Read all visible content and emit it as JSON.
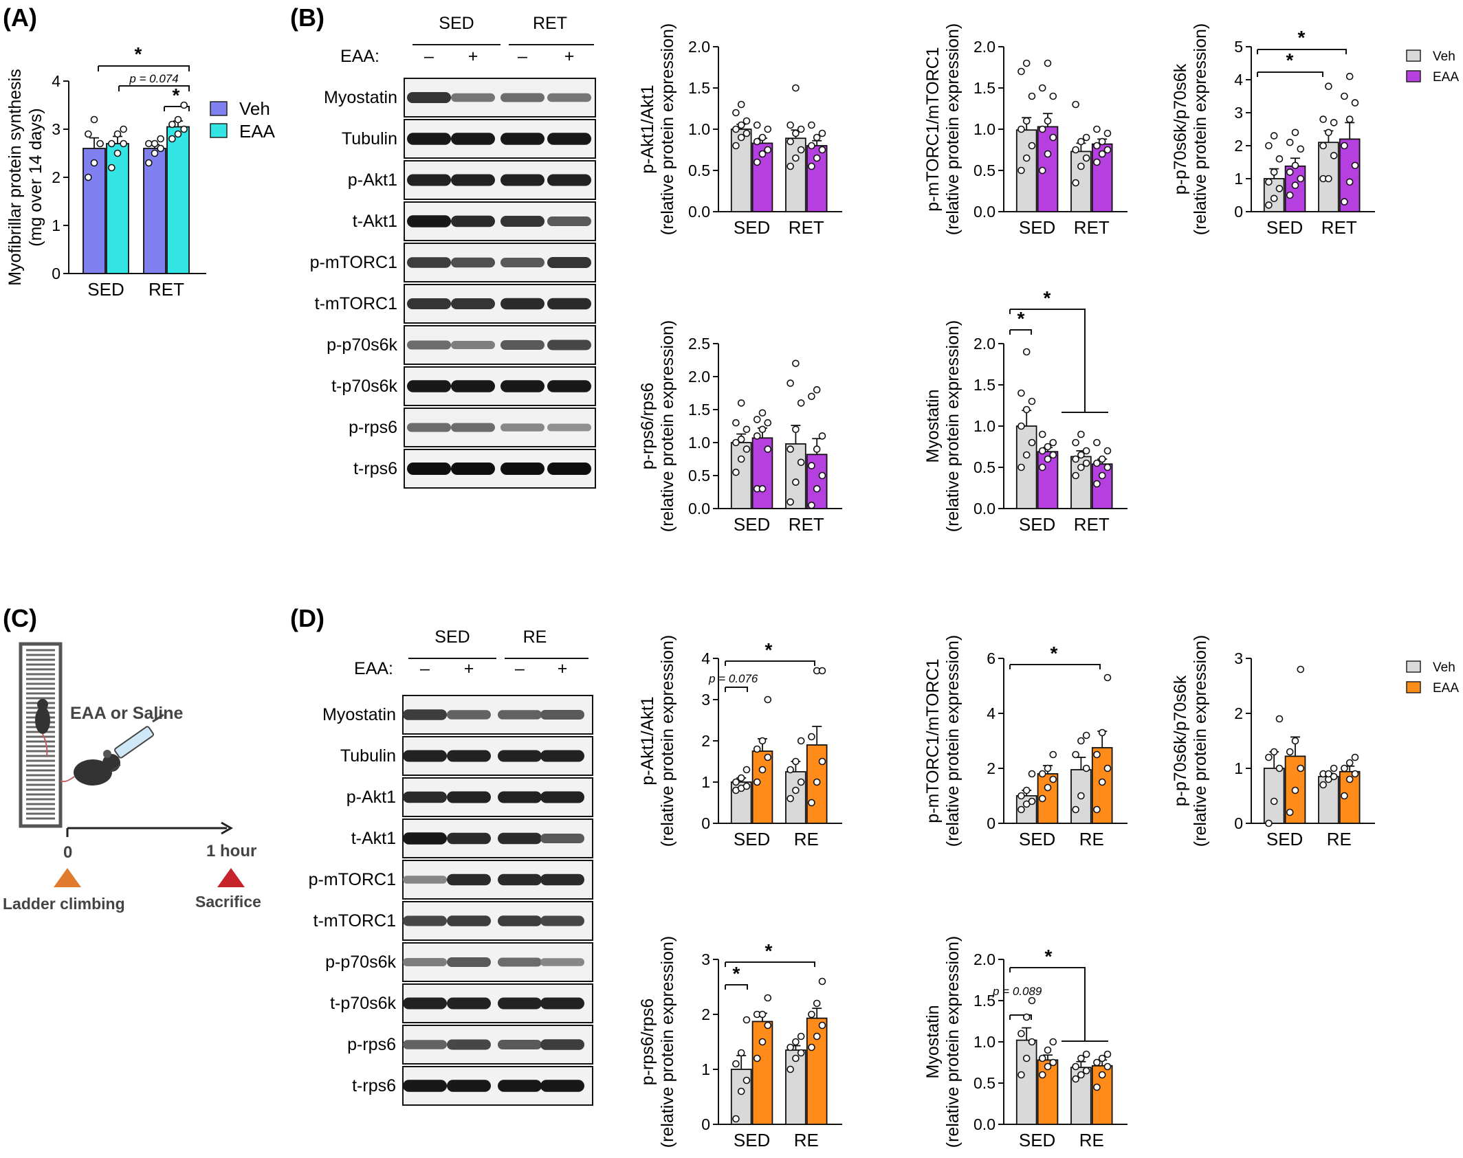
{
  "panels": {
    "A": "(A)",
    "B": "(B)",
    "C": "(C)",
    "D": "(D)"
  },
  "colors": {
    "veh_A": "#8080F0",
    "eaa_A": "#33E5E5",
    "veh": "#D9D9D9",
    "eaa_B": "#B63FE0",
    "eaa_D": "#FF8C1A"
  },
  "panel_A": {
    "ylabel_line1": "Myofibrillar protein synthesis",
    "ylabel_line2": "(mg over 14 days)",
    "legend": [
      "Veh",
      "EAA"
    ],
    "pval": "p = 0.074",
    "star": "*"
  },
  "panel_B": {
    "groups": [
      "SED",
      "RET"
    ],
    "eaa_label": "EAA:",
    "signs": [
      "–",
      "+",
      "–",
      "+"
    ],
    "blots": [
      "Myostatin",
      "Tubulin",
      "p-Akt1",
      "t-Akt1",
      "p-mTORC1",
      "t-mTORC1",
      "p-p70s6k",
      "t-p70s6k",
      "p-rps6",
      "t-rps6"
    ],
    "legend": [
      "Veh",
      "EAA"
    ]
  },
  "panel_C": {
    "treatment": "EAA or Saline",
    "t0": "0",
    "t1": "1 hour",
    "start": "Ladder climbing",
    "end": "Sacrifice"
  },
  "panel_D": {
    "groups": [
      "SED",
      "RE"
    ],
    "eaa_label": "EAA:",
    "signs": [
      "–",
      "+",
      "–",
      "+"
    ],
    "blots": [
      "Myostatin",
      "Tubulin",
      "p-Akt1",
      "t-Akt1",
      "p-mTORC1",
      "t-mTORC1",
      "p-p70s6k",
      "t-p70s6k",
      "p-rps6",
      "t-rps6"
    ],
    "legend": [
      "Veh",
      "EAA"
    ]
  },
  "chart_data": [
    {
      "id": "A-mps",
      "type": "bar",
      "categories": [
        "SED",
        "RET"
      ],
      "ylabel": "Myofibrillar protein synthesis (mg over 14 days)",
      "ylim": [
        0,
        4
      ],
      "yticks": [
        0,
        1,
        2,
        3,
        4
      ],
      "series": [
        {
          "name": "Veh",
          "values": [
            2.6,
            2.6
          ],
          "sem": [
            0.22,
            0.08
          ],
          "points": [
            [
              2.0,
              2.3,
              2.7,
              2.9,
              3.2
            ],
            [
              2.3,
              2.5,
              2.6,
              2.7,
              2.7,
              2.8
            ]
          ]
        },
        {
          "name": "EAA",
          "values": [
            2.7,
            3.05
          ],
          "sem": [
            0.15,
            0.12
          ],
          "points": [
            [
              2.2,
              2.5,
              2.7,
              2.7,
              2.9,
              3.0
            ],
            [
              2.8,
              2.9,
              3.0,
              3.1,
              3.2,
              3.5
            ]
          ]
        }
      ],
      "annotations": [
        "*",
        "p = 0.074",
        "*"
      ]
    },
    {
      "id": "B-akt",
      "type": "bar",
      "categories": [
        "SED",
        "RET"
      ],
      "ylabel": "p-Akt1/Akt1 (relative protein expression)",
      "ylim": [
        0,
        2.0
      ],
      "yticks": [
        "0.0",
        "0.5",
        "1.0",
        "1.5",
        "2.0"
      ],
      "series": [
        {
          "name": "Veh",
          "values": [
            1.0,
            0.89
          ],
          "sem": [
            0.06,
            0.1
          ],
          "points": [
            [
              0.8,
              0.9,
              0.95,
              1.0,
              1.05,
              1.1,
              1.2,
              1.3
            ],
            [
              0.55,
              0.65,
              0.75,
              0.85,
              0.95,
              1.0,
              1.05,
              1.5
            ]
          ]
        },
        {
          "name": "EAA",
          "values": [
            0.83,
            0.8
          ],
          "sem": [
            0.06,
            0.06
          ],
          "points": [
            [
              0.6,
              0.7,
              0.75,
              0.85,
              0.9,
              1.0,
              1.05
            ],
            [
              0.55,
              0.65,
              0.75,
              0.8,
              0.9,
              0.95,
              1.05
            ]
          ]
        }
      ]
    },
    {
      "id": "B-mtor",
      "type": "bar",
      "categories": [
        "SED",
        "RET"
      ],
      "ylabel": "p-mTORC1/mTORC1 (relative protein expression)",
      "ylim": [
        0,
        2.0
      ],
      "yticks": [
        "0.0",
        "0.5",
        "1.0",
        "1.5",
        "2.0"
      ],
      "series": [
        {
          "name": "Veh",
          "values": [
            0.99,
            0.73
          ],
          "sem": [
            0.15,
            0.1
          ],
          "points": [
            [
              0.5,
              0.65,
              0.8,
              1.0,
              1.1,
              1.4,
              1.7,
              1.8
            ],
            [
              0.35,
              0.55,
              0.65,
              0.75,
              0.85,
              0.9,
              1.3
            ]
          ]
        },
        {
          "name": "EAA",
          "values": [
            1.03,
            0.82
          ],
          "sem": [
            0.16,
            0.06
          ],
          "points": [
            [
              0.5,
              0.7,
              0.9,
              1.0,
              1.1,
              1.4,
              1.5,
              1.8
            ],
            [
              0.6,
              0.7,
              0.75,
              0.8,
              0.85,
              0.95,
              1.0
            ]
          ]
        }
      ]
    },
    {
      "id": "B-p70",
      "type": "bar",
      "categories": [
        "SED",
        "RET"
      ],
      "ylabel": "p-p70s6k/p70s6k (relative protein expression)",
      "ylim": [
        0,
        5
      ],
      "yticks": [
        0,
        1,
        2,
        3,
        4,
        5
      ],
      "series": [
        {
          "name": "Veh",
          "values": [
            1.0,
            2.1
          ],
          "sem": [
            0.3,
            0.35
          ],
          "points": [
            [
              0.2,
              0.4,
              0.7,
              0.9,
              1.2,
              1.6,
              2.0,
              2.3
            ],
            [
              1.0,
              1.0,
              1.7,
              2.0,
              2.4,
              2.7,
              2.8,
              3.8
            ]
          ]
        },
        {
          "name": "EAA",
          "values": [
            1.38,
            2.2
          ],
          "sem": [
            0.24,
            0.5
          ],
          "points": [
            [
              0.5,
              0.8,
              1.0,
              1.2,
              1.4,
              1.9,
              2.1,
              2.4
            ],
            [
              0.3,
              0.9,
              1.4,
              2.0,
              2.8,
              3.3,
              3.5,
              4.1
            ]
          ]
        }
      ],
      "annotations": [
        "*",
        "*"
      ]
    },
    {
      "id": "B-rps6",
      "type": "bar",
      "categories": [
        "SED",
        "RET"
      ],
      "ylabel": "p-rps6/rps6 (relative protein expression)",
      "ylim": [
        0,
        2.5
      ],
      "yticks": [
        "0.0",
        "0.5",
        "1.0",
        "1.5",
        "2.0",
        "2.5"
      ],
      "series": [
        {
          "name": "Veh",
          "values": [
            1.0,
            0.98
          ],
          "sem": [
            0.13,
            0.28
          ],
          "points": [
            [
              0.55,
              0.75,
              0.9,
              1.0,
              1.05,
              1.2,
              1.3,
              1.6
            ],
            [
              0.1,
              0.4,
              0.7,
              0.9,
              1.2,
              1.6,
              1.9,
              2.2
            ]
          ]
        },
        {
          "name": "EAA",
          "values": [
            1.07,
            0.82
          ],
          "sem": [
            0.15,
            0.24
          ],
          "points": [
            [
              0.3,
              0.3,
              0.9,
              1.1,
              1.2,
              1.3,
              1.35,
              1.45
            ],
            [
              0.05,
              0.3,
              0.5,
              0.65,
              0.9,
              1.1,
              1.7,
              1.8
            ]
          ]
        }
      ]
    },
    {
      "id": "B-myostatin",
      "type": "bar",
      "categories": [
        "SED",
        "RET"
      ],
      "ylabel": "Myostatin (relative protein expression)",
      "ylim": [
        0,
        2.0
      ],
      "yticks": [
        "0.0",
        "0.5",
        "1.0",
        "1.5",
        "2.0"
      ],
      "series": [
        {
          "name": "Veh",
          "values": [
            1.0,
            0.63
          ],
          "sem": [
            0.19,
            0.07
          ],
          "points": [
            [
              0.5,
              0.65,
              0.8,
              1.0,
              1.2,
              1.3,
              1.4,
              1.9
            ],
            [
              0.4,
              0.5,
              0.55,
              0.6,
              0.65,
              0.7,
              0.8,
              0.9
            ]
          ]
        },
        {
          "name": "EAA",
          "values": [
            0.69,
            0.54
          ],
          "sem": [
            0.05,
            0.06
          ],
          "points": [
            [
              0.5,
              0.6,
              0.65,
              0.7,
              0.75,
              0.8,
              0.9
            ],
            [
              0.3,
              0.4,
              0.5,
              0.55,
              0.6,
              0.7,
              0.8
            ]
          ]
        }
      ],
      "annotations": [
        "*",
        "*"
      ]
    },
    {
      "id": "D-akt",
      "type": "bar",
      "categories": [
        "SED",
        "RE"
      ],
      "ylabel": "p-Akt1/Akt1 (relative protein expression)",
      "ylim": [
        0,
        4
      ],
      "yticks": [
        0,
        1,
        2,
        3,
        4
      ],
      "series": [
        {
          "name": "Veh",
          "values": [
            1.0,
            1.25
          ],
          "sem": [
            0.1,
            0.25
          ],
          "points": [
            [
              0.8,
              0.85,
              0.9,
              1.0,
              1.1,
              1.3
            ],
            [
              0.6,
              0.8,
              1.0,
              1.3,
              1.5,
              2.0
            ]
          ]
        },
        {
          "name": "EAA",
          "values": [
            1.75,
            1.9
          ],
          "sem": [
            0.3,
            0.45
          ],
          "points": [
            [
              1.0,
              1.3,
              1.6,
              1.8,
              2.0,
              3.0
            ],
            [
              0.5,
              1.0,
              1.5,
              2.1,
              3.7,
              3.7
            ]
          ]
        }
      ],
      "annotations": [
        "p = 0.076",
        "*"
      ]
    },
    {
      "id": "D-mtor",
      "type": "bar",
      "categories": [
        "SED",
        "RE"
      ],
      "ylabel": "p-mTORC1/mTORC1 (relative protein expression)",
      "ylim": [
        0,
        6
      ],
      "yticks": [
        0,
        2,
        4,
        6
      ],
      "series": [
        {
          "name": "Veh",
          "values": [
            1.0,
            1.95
          ],
          "sem": [
            0.2,
            0.45
          ],
          "points": [
            [
              0.5,
              0.7,
              0.8,
              1.0,
              1.2,
              1.8
            ],
            [
              0.5,
              1.0,
              2.0,
              2.5,
              3.0,
              3.2
            ]
          ]
        },
        {
          "name": "EAA",
          "values": [
            1.8,
            2.75
          ],
          "sem": [
            0.3,
            0.6
          ],
          "points": [
            [
              0.9,
              1.3,
              1.6,
              1.8,
              2.0,
              2.5
            ],
            [
              0.5,
              1.5,
              2.0,
              2.5,
              3.3,
              5.3
            ]
          ]
        }
      ],
      "annotations": [
        "*"
      ]
    },
    {
      "id": "D-p70",
      "type": "bar",
      "categories": [
        "SED",
        "RE"
      ],
      "ylabel": "p-p70s6k/p70s6k (relative protein expression)",
      "ylim": [
        0,
        3
      ],
      "yticks": [
        0,
        1,
        2,
        3
      ],
      "series": [
        {
          "name": "Veh",
          "values": [
            1.0,
            0.85
          ],
          "sem": [
            0.3,
            0.06
          ],
          "points": [
            [
              0.0,
              0.4,
              1.0,
              1.2,
              1.3,
              1.9
            ],
            [
              0.7,
              0.8,
              0.85,
              0.9,
              0.9,
              1.0
            ]
          ]
        },
        {
          "name": "EAA",
          "values": [
            1.22,
            0.94
          ],
          "sem": [
            0.35,
            0.1
          ],
          "points": [
            [
              0.2,
              0.6,
              1.0,
              1.3,
              1.5,
              2.8
            ],
            [
              0.5,
              0.8,
              0.9,
              1.0,
              1.1,
              1.2
            ]
          ]
        }
      ]
    },
    {
      "id": "D-rps6",
      "type": "bar",
      "categories": [
        "SED",
        "RE"
      ],
      "ylabel": "p-rps6/rps6 (relative protein expression)",
      "ylim": [
        0,
        3
      ],
      "yticks": [
        0,
        1,
        2,
        3
      ],
      "series": [
        {
          "name": "Veh",
          "values": [
            1.0,
            1.35
          ],
          "sem": [
            0.25,
            0.08
          ],
          "points": [
            [
              0.1,
              0.6,
              0.8,
              1.1,
              1.3,
              1.9
            ],
            [
              1.0,
              1.2,
              1.3,
              1.4,
              1.5,
              1.6
            ]
          ]
        },
        {
          "name": "EAA",
          "values": [
            1.87,
            1.93
          ],
          "sem": [
            0.15,
            0.18
          ],
          "points": [
            [
              1.2,
              1.5,
              1.8,
              2.0,
              2.0,
              2.3
            ],
            [
              1.4,
              1.6,
              1.8,
              2.0,
              2.2,
              2.6
            ]
          ]
        }
      ],
      "annotations": [
        "*",
        "*"
      ]
    },
    {
      "id": "D-myostatin",
      "type": "bar",
      "categories": [
        "SED",
        "RE"
      ],
      "ylabel": "Myostatin (relative protein expression)",
      "ylim": [
        0,
        2.0
      ],
      "yticks": [
        "0.0",
        "0.5",
        "1.0",
        "1.5",
        "2.0"
      ],
      "series": [
        {
          "name": "Veh",
          "values": [
            1.02,
            0.69
          ],
          "sem": [
            0.15,
            0.07
          ],
          "points": [
            [
              0.6,
              0.8,
              1.0,
              1.1,
              1.3,
              1.5
            ],
            [
              0.55,
              0.6,
              0.65,
              0.7,
              0.8,
              0.85
            ]
          ]
        },
        {
          "name": "EAA",
          "values": [
            0.78,
            0.71
          ],
          "sem": [
            0.06,
            0.07
          ],
          "points": [
            [
              0.6,
              0.7,
              0.75,
              0.8,
              0.9,
              1.0
            ],
            [
              0.45,
              0.6,
              0.7,
              0.75,
              0.8,
              0.85
            ]
          ]
        }
      ],
      "annotations": [
        "p = 0.089",
        "*"
      ]
    }
  ]
}
